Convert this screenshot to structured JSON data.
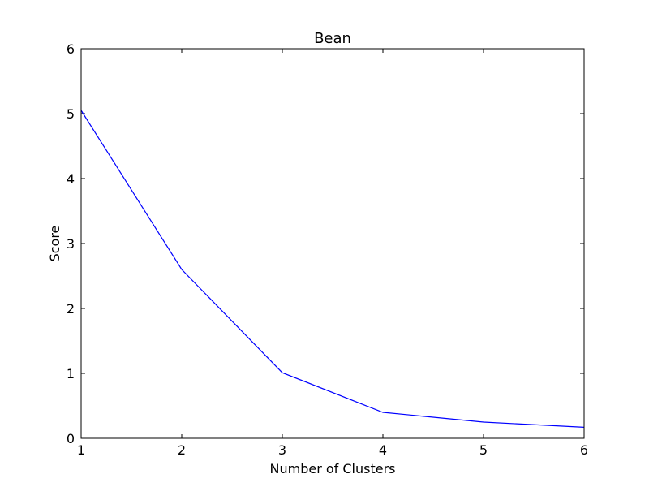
{
  "chart_data": {
    "type": "line",
    "title": "Bean",
    "xlabel": "Number of Clusters",
    "ylabel": "Score",
    "xlim": [
      1,
      6
    ],
    "ylim": [
      0,
      6
    ],
    "xticks": [
      "1",
      "2",
      "3",
      "4",
      "5",
      "6"
    ],
    "yticks": [
      "0",
      "1",
      "2",
      "3",
      "4",
      "5",
      "6"
    ],
    "grid": false,
    "series": [
      {
        "color": "#0000ff",
        "x": [
          1,
          2,
          3,
          4,
          5,
          6
        ],
        "y": [
          5.05,
          2.6,
          1.01,
          0.4,
          0.25,
          0.17
        ]
      }
    ]
  }
}
